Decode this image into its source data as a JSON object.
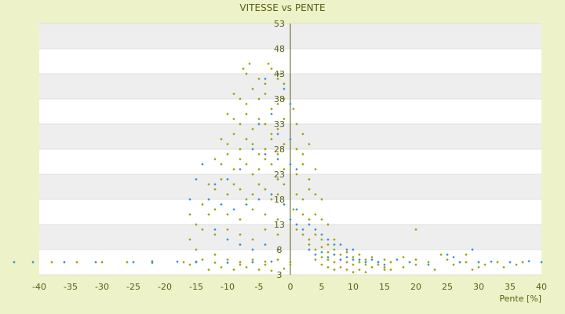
{
  "chart_data": {
    "type": "scatter",
    "title": "VITESSE vs PENTE",
    "xlabel": "Pente [%]",
    "ylabel": "",
    "xlim": [
      -40,
      40
    ],
    "ylim": [
      3,
      53
    ],
    "x_ticks": [
      -40,
      -35,
      -30,
      -25,
      -20,
      -15,
      -10,
      -5,
      0,
      5,
      10,
      15,
      20,
      25,
      30,
      35,
      40
    ],
    "y_ticks": [
      3,
      8,
      13,
      18,
      23,
      28,
      33,
      38,
      43,
      48,
      53
    ],
    "grid": true,
    "legend": "none",
    "series": [
      {
        "color": "#9aa000",
        "points": [
          [
            -7.5,
            44
          ],
          [
            -7,
            43
          ],
          [
            -6.5,
            45
          ],
          [
            -5,
            42
          ],
          [
            -4,
            41
          ],
          [
            -3.5,
            45
          ],
          [
            -3,
            44
          ],
          [
            -2,
            42
          ],
          [
            -1.5,
            43
          ],
          [
            -1,
            41
          ],
          [
            -9,
            39
          ],
          [
            -8,
            38
          ],
          [
            -7,
            37
          ],
          [
            -6,
            40
          ],
          [
            -5,
            38
          ],
          [
            -4,
            39
          ],
          [
            -3,
            36
          ],
          [
            -2,
            37
          ],
          [
            -1,
            38
          ],
          [
            0.5,
            36
          ],
          [
            -10,
            35
          ],
          [
            -9,
            34
          ],
          [
            -8,
            33
          ],
          [
            -7,
            35
          ],
          [
            -6,
            32
          ],
          [
            -5,
            34
          ],
          [
            -4,
            33
          ],
          [
            -3,
            31
          ],
          [
            -2,
            32
          ],
          [
            -1,
            34
          ],
          [
            1,
            33
          ],
          [
            2,
            31
          ],
          [
            -11,
            30
          ],
          [
            -10,
            29
          ],
          [
            -9,
            31
          ],
          [
            -8,
            28
          ],
          [
            -7,
            30
          ],
          [
            -6,
            29
          ],
          [
            -5,
            27
          ],
          [
            -4,
            28
          ],
          [
            -3,
            30
          ],
          [
            -2,
            27
          ],
          [
            -1,
            29
          ],
          [
            1,
            28
          ],
          [
            2,
            27
          ],
          [
            3,
            29
          ],
          [
            -12,
            26
          ],
          [
            -11,
            25
          ],
          [
            -10,
            27
          ],
          [
            -9,
            24
          ],
          [
            -8,
            26
          ],
          [
            -7,
            25
          ],
          [
            -6,
            23
          ],
          [
            -5,
            24
          ],
          [
            -4,
            26
          ],
          [
            -3,
            25
          ],
          [
            -2,
            22
          ],
          [
            -1,
            24
          ],
          [
            1,
            23
          ],
          [
            2,
            25
          ],
          [
            3,
            22
          ],
          [
            4,
            24
          ],
          [
            -13,
            21
          ],
          [
            -12,
            20
          ],
          [
            -11,
            22
          ],
          [
            -10,
            19
          ],
          [
            -9,
            21
          ],
          [
            -8,
            20
          ],
          [
            -7,
            18
          ],
          [
            -6,
            19
          ],
          [
            -5,
            21
          ],
          [
            -4,
            20
          ],
          [
            -3,
            18
          ],
          [
            -2,
            19
          ],
          [
            -1,
            21
          ],
          [
            1,
            19
          ],
          [
            2,
            18
          ],
          [
            3,
            20
          ],
          [
            4,
            19
          ],
          [
            5,
            18
          ],
          [
            -14,
            17
          ],
          [
            -13,
            15
          ],
          [
            -12,
            16
          ],
          [
            -10,
            15
          ],
          [
            -8,
            14
          ],
          [
            -6,
            16
          ],
          [
            -4,
            15
          ],
          [
            -2,
            14
          ],
          [
            0.5,
            16
          ],
          [
            2,
            15
          ],
          [
            3,
            14
          ],
          [
            4,
            15
          ],
          [
            5,
            14
          ],
          [
            6,
            13
          ],
          [
            -15,
            13
          ],
          [
            -14,
            12
          ],
          [
            -12,
            11
          ],
          [
            -10,
            12
          ],
          [
            -8,
            11
          ],
          [
            -6,
            10
          ],
          [
            -4,
            12
          ],
          [
            -2,
            11
          ],
          [
            1,
            12
          ],
          [
            2,
            11
          ],
          [
            3,
            10
          ],
          [
            4,
            11
          ],
          [
            5,
            10
          ],
          [
            6,
            9
          ],
          [
            7,
            10
          ],
          [
            3,
            9
          ],
          [
            4,
            8
          ],
          [
            5,
            8.5
          ],
          [
            6,
            7.5
          ],
          [
            7,
            8
          ],
          [
            8,
            7
          ],
          [
            9,
            7.5
          ],
          [
            10,
            6.5
          ],
          [
            11,
            7
          ],
          [
            12,
            6
          ],
          [
            13,
            6.5
          ],
          [
            14,
            5.5
          ],
          [
            15,
            6
          ],
          [
            16,
            5.5
          ],
          [
            18,
            6.5
          ],
          [
            20,
            6
          ],
          [
            22,
            5.5
          ],
          [
            25,
            6
          ],
          [
            28,
            5.5
          ],
          [
            4,
            6
          ],
          [
            5,
            6.5
          ],
          [
            6,
            6
          ],
          [
            7,
            5.5
          ],
          [
            8,
            6
          ],
          [
            9,
            5.5
          ],
          [
            10,
            5
          ],
          [
            11,
            5.5
          ],
          [
            12,
            5
          ],
          [
            13,
            4.5
          ],
          [
            14,
            5
          ],
          [
            15,
            4.5
          ],
          [
            16,
            4
          ],
          [
            5,
            5
          ],
          [
            6,
            4.5
          ],
          [
            7,
            4
          ],
          [
            8,
            4.5
          ],
          [
            9,
            4
          ],
          [
            10,
            3.5
          ],
          [
            11,
            4
          ],
          [
            12,
            3.5
          ],
          [
            -16,
            15
          ],
          [
            -16,
            10
          ],
          [
            -15,
            8
          ],
          [
            -14,
            6
          ],
          [
            -12,
            7
          ],
          [
            -10,
            6
          ],
          [
            -8,
            5
          ],
          [
            -6,
            6
          ],
          [
            -4,
            5
          ],
          [
            -2,
            6
          ],
          [
            0,
            5
          ],
          [
            -16,
            5
          ],
          [
            -13,
            4
          ],
          [
            -11,
            4.5
          ],
          [
            -9,
            4
          ],
          [
            -7,
            4.5
          ],
          [
            -5,
            4
          ],
          [
            -3,
            3.8
          ],
          [
            -1,
            4.2
          ],
          [
            -38,
            5.5
          ],
          [
            -34,
            5.5
          ],
          [
            -30,
            5.5
          ],
          [
            -26,
            5.5
          ],
          [
            -22,
            5.7
          ],
          [
            -17,
            5.5
          ],
          [
            -15,
            5.6
          ],
          [
            -12,
            5.4
          ],
          [
            -8,
            5.5
          ],
          [
            -4,
            5.6
          ],
          [
            0,
            5.5
          ],
          [
            15,
            4
          ],
          [
            18,
            4.5
          ],
          [
            20,
            5
          ],
          [
            23,
            4
          ],
          [
            26,
            5
          ],
          [
            29,
            4
          ],
          [
            31,
            5
          ],
          [
            34,
            4.5
          ],
          [
            36,
            5
          ],
          [
            20,
            12
          ],
          [
            24,
            7
          ],
          [
            28,
            7
          ],
          [
            30,
            4.5
          ],
          [
            33,
            5.5
          ],
          [
            37,
            5.5
          ]
        ]
      },
      {
        "color": "#2f8fd8",
        "points": [
          [
            -4,
            42
          ],
          [
            -2,
            43
          ],
          [
            -1,
            40
          ],
          [
            0,
            37
          ],
          [
            -3,
            35
          ],
          [
            -5,
            33
          ],
          [
            -2,
            31
          ],
          [
            0,
            30
          ],
          [
            -6,
            28
          ],
          [
            -4,
            27
          ],
          [
            -2,
            26
          ],
          [
            0,
            25
          ],
          [
            1,
            24
          ],
          [
            -8,
            24
          ],
          [
            -10,
            22
          ],
          [
            -12,
            21
          ],
          [
            -14,
            25
          ],
          [
            -15,
            22
          ],
          [
            -13,
            18
          ],
          [
            -11,
            17
          ],
          [
            -9,
            16
          ],
          [
            -7,
            17
          ],
          [
            -5,
            18
          ],
          [
            -3,
            19
          ],
          [
            -1,
            17
          ],
          [
            1,
            16
          ],
          [
            0,
            14
          ],
          [
            1,
            13
          ],
          [
            2,
            12
          ],
          [
            3,
            13
          ],
          [
            4,
            12
          ],
          [
            5,
            11
          ],
          [
            6,
            10
          ],
          [
            7,
            9
          ],
          [
            8,
            9
          ],
          [
            9,
            8
          ],
          [
            10,
            8
          ],
          [
            3,
            8
          ],
          [
            4,
            7
          ],
          [
            5,
            7.5
          ],
          [
            6,
            6.5
          ],
          [
            7,
            7
          ],
          [
            8,
            6
          ],
          [
            9,
            6.5
          ],
          [
            10,
            6
          ],
          [
            11,
            6
          ],
          [
            12,
            5.5
          ],
          [
            13,
            6
          ],
          [
            14,
            5.5
          ],
          [
            15,
            5
          ],
          [
            17,
            6
          ],
          [
            19,
            5.5
          ],
          [
            -10,
            10
          ],
          [
            -8,
            9
          ],
          [
            -6,
            8
          ],
          [
            -4,
            9
          ],
          [
            -2,
            8
          ],
          [
            -12,
            12
          ],
          [
            -16,
            18
          ],
          [
            -44,
            5.5
          ],
          [
            -41,
            5.5
          ],
          [
            -36,
            5.5
          ],
          [
            -31,
            5.5
          ],
          [
            -25,
            5.5
          ],
          [
            -22,
            5.4
          ],
          [
            -18,
            5.6
          ],
          [
            -15,
            5.5
          ],
          [
            -10,
            5.4
          ],
          [
            -6,
            5.5
          ],
          [
            -3,
            5.6
          ],
          [
            22,
            5
          ],
          [
            25,
            7
          ],
          [
            27,
            5.5
          ],
          [
            30,
            5.5
          ],
          [
            32,
            5.6
          ],
          [
            35,
            5.5
          ],
          [
            38,
            5.7
          ],
          [
            40,
            5.5
          ],
          [
            29,
            8
          ],
          [
            26,
            6.5
          ]
        ]
      }
    ]
  }
}
